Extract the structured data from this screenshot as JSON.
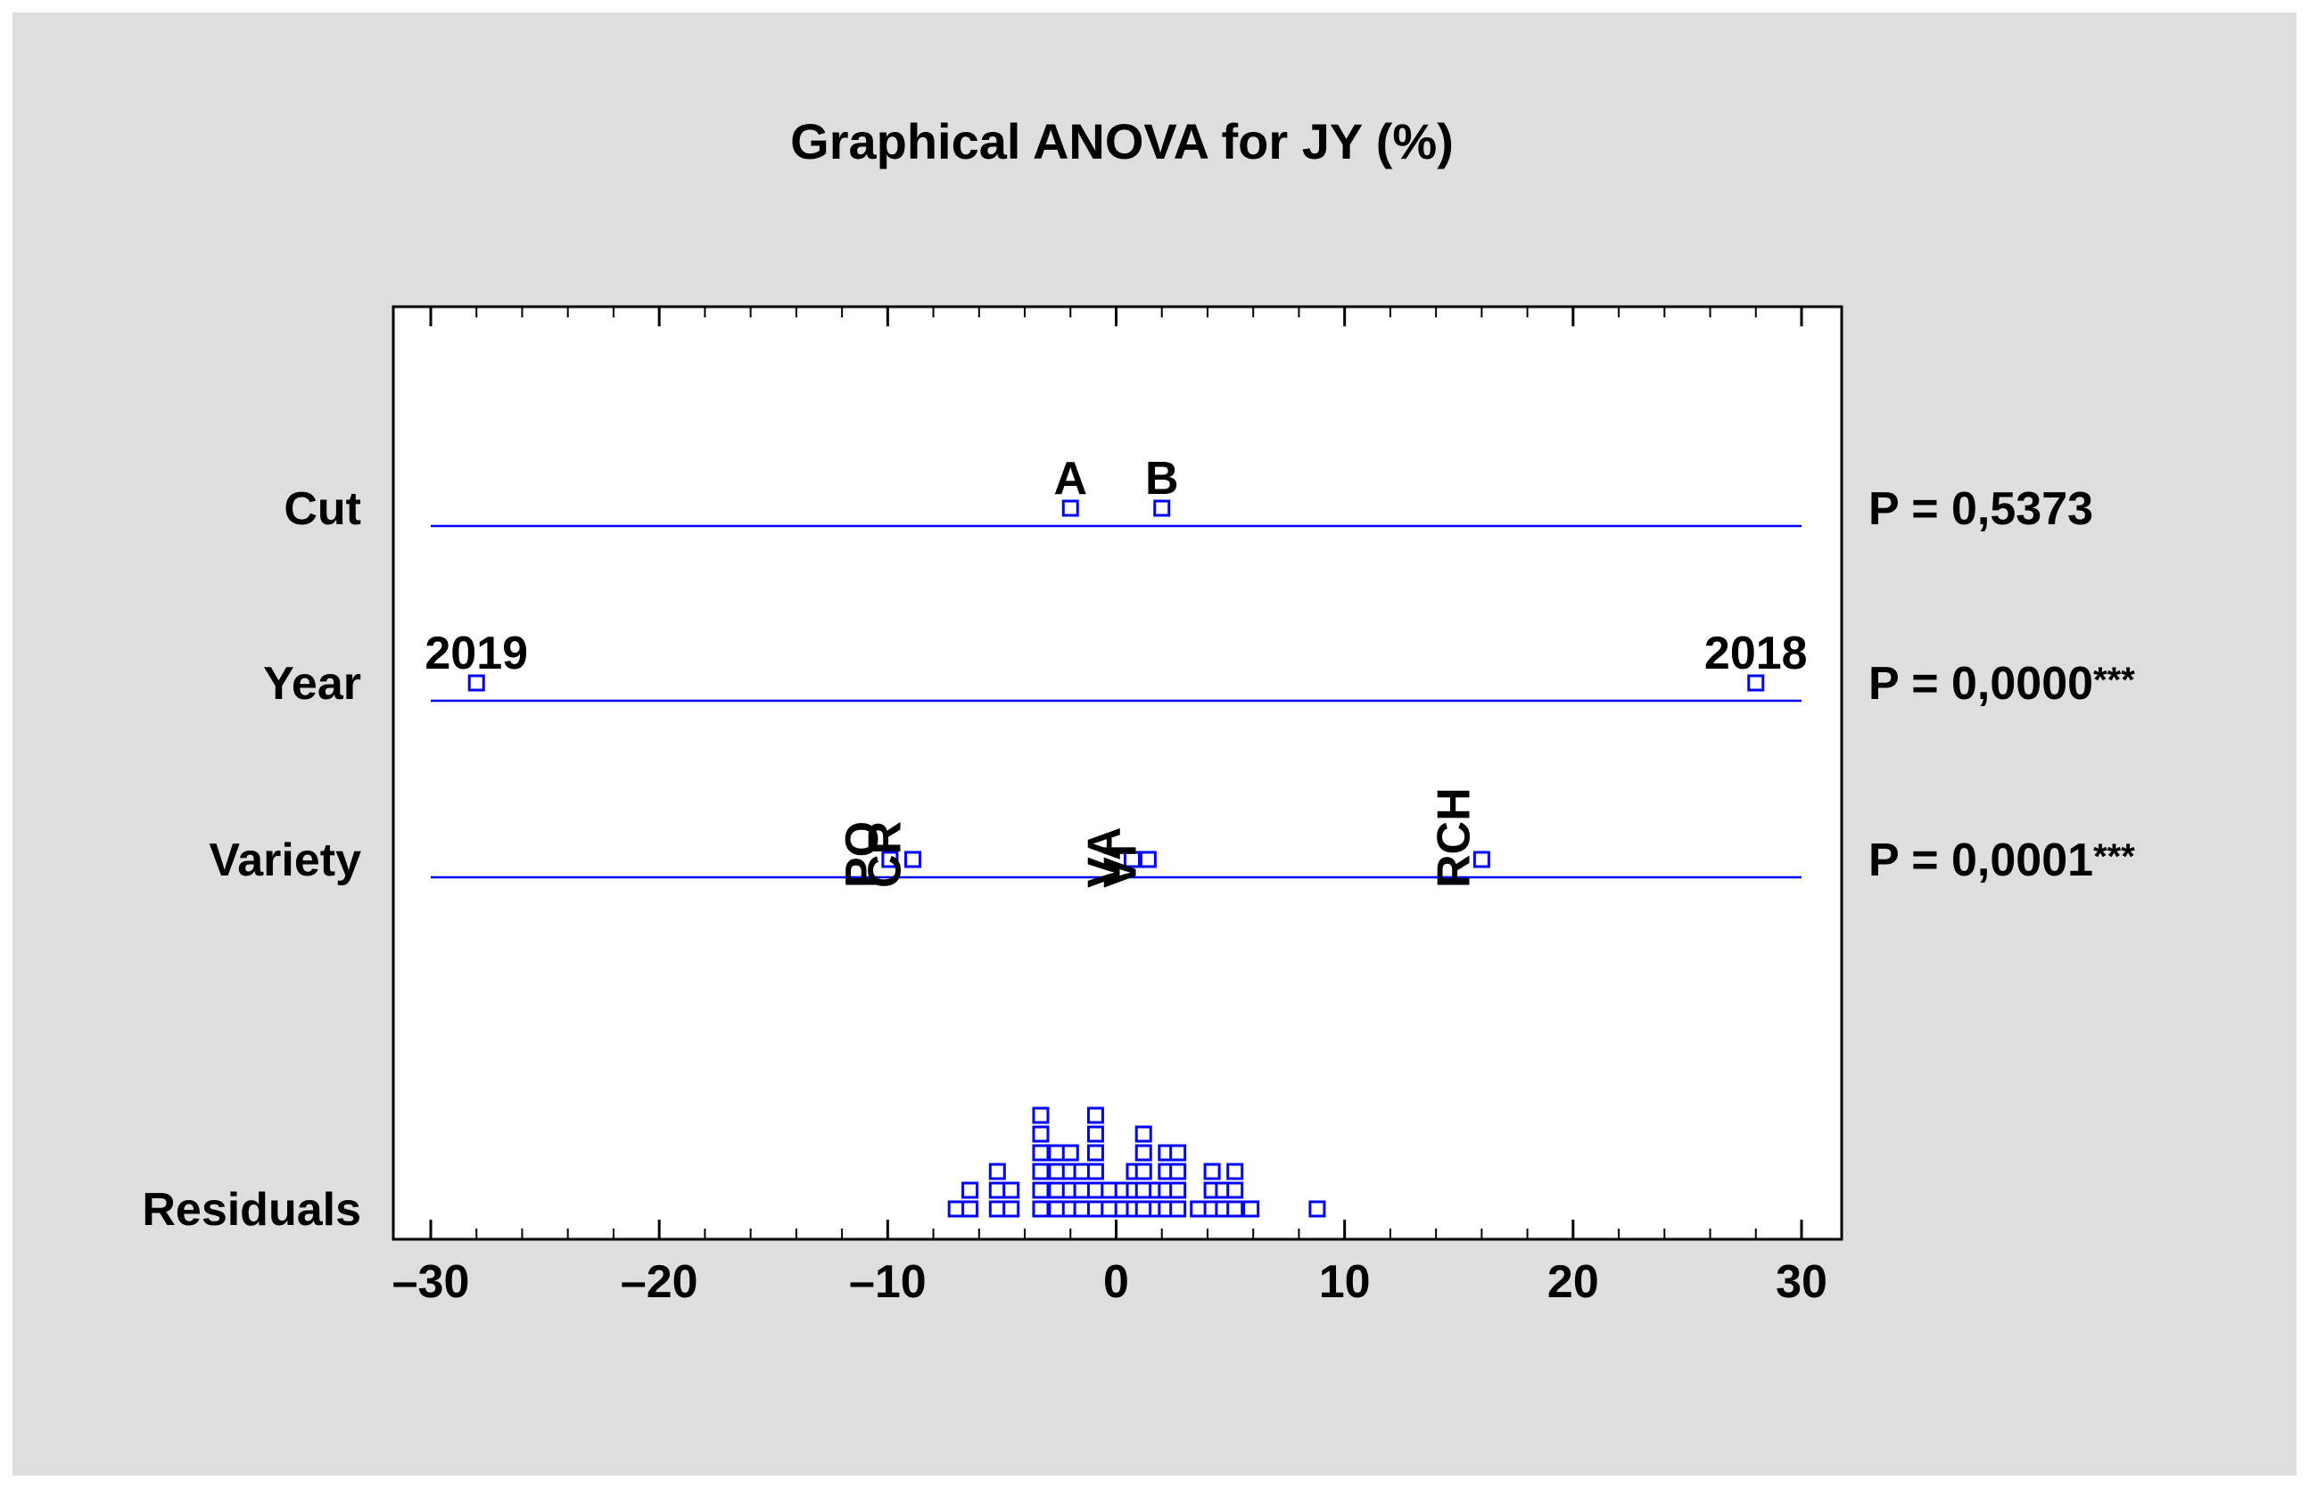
{
  "chart_data": {
    "type": "scatter",
    "title": "Graphical ANOVA for JY (%)",
    "xlim": [
      -30,
      30
    ],
    "x_ticks": [
      "–30",
      "–20",
      "–10",
      "0",
      "10",
      "20",
      "30"
    ],
    "x_tick_values": [
      -30,
      -20,
      -10,
      0,
      10,
      20,
      30
    ],
    "marker_color": "#0000FF",
    "background_color": "#DEDEDE",
    "rows": [
      {
        "label": "Cut",
        "p_value": "P = 0,5373",
        "stars": "",
        "points": [
          {
            "label": "A",
            "x": -2.0
          },
          {
            "label": "B",
            "x": 2.0
          }
        ]
      },
      {
        "label": "Year",
        "p_value": "P = 0,0000",
        "stars": "***",
        "points": [
          {
            "label": "2019",
            "x": -28.0
          },
          {
            "label": "2018",
            "x": 28.0
          }
        ]
      },
      {
        "label": "Variety",
        "p_value": "P = 0,0001",
        "stars": "***",
        "points": [
          {
            "label": "PO",
            "x": -9.9
          },
          {
            "label": "CR",
            "x": -8.9
          },
          {
            "label": "VA",
            "x": 0.7
          },
          {
            "label": "VI",
            "x": 1.4
          },
          {
            "label": "RCH",
            "x": 16.0
          }
        ]
      }
    ],
    "residuals_label": "Residuals",
    "residuals": [
      {
        "x": -7.0,
        "count": 1
      },
      {
        "x": -6.4,
        "count": 2
      },
      {
        "x": -5.2,
        "count": 3
      },
      {
        "x": -4.6,
        "count": 2
      },
      {
        "x": -3.3,
        "count": 6
      },
      {
        "x": -2.6,
        "count": 4
      },
      {
        "x": -2.0,
        "count": 4
      },
      {
        "x": -1.5,
        "count": 3
      },
      {
        "x": -0.9,
        "count": 6
      },
      {
        "x": -0.3,
        "count": 2
      },
      {
        "x": 0.3,
        "count": 2
      },
      {
        "x": 0.8,
        "count": 3
      },
      {
        "x": 1.2,
        "count": 5
      },
      {
        "x": 1.8,
        "count": 2
      },
      {
        "x": 2.2,
        "count": 4
      },
      {
        "x": 2.7,
        "count": 4
      },
      {
        "x": 3.6,
        "count": 1
      },
      {
        "x": 4.2,
        "count": 3
      },
      {
        "x": 4.7,
        "count": 2
      },
      {
        "x": 5.2,
        "count": 3
      },
      {
        "x": 5.9,
        "count": 1
      },
      {
        "x": 8.8,
        "count": 1
      }
    ]
  }
}
